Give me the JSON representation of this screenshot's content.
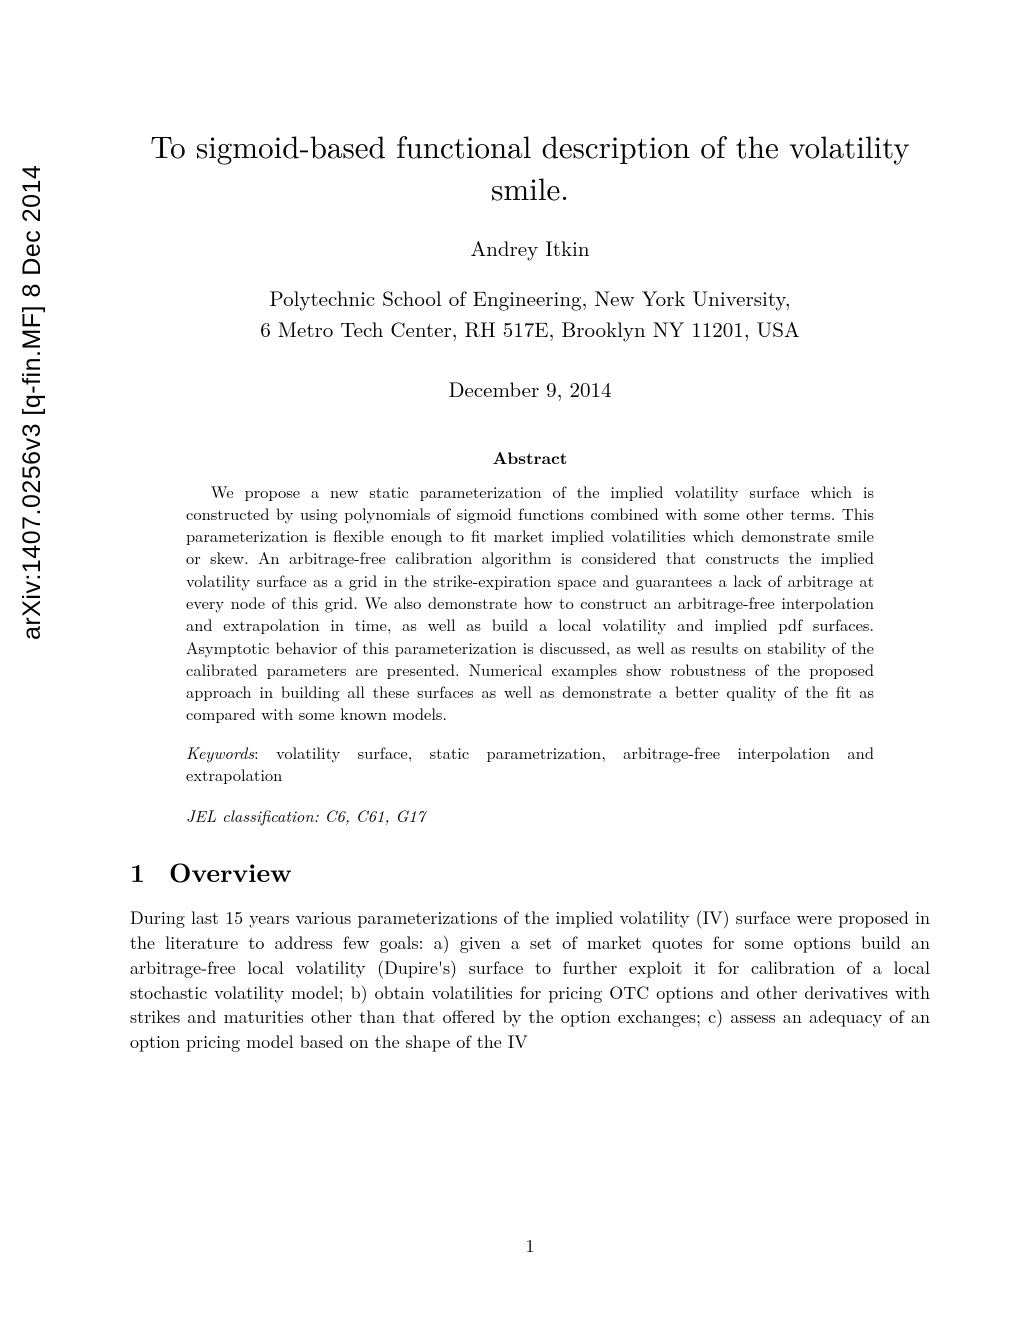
{
  "arxiv_stamp": "arXiv:1407.0256v3  [q-fin.MF]  8 Dec 2014",
  "title": "To sigmoid-based functional description of the volatility smile.",
  "author": "Andrey Itkin",
  "affiliation_line1": "Polytechnic School of Engineering, New York University,",
  "affiliation_line2": "6 Metro Tech Center, RH 517E, Brooklyn NY 11201, USA",
  "date": "December 9, 2014",
  "abstract_heading": "Abstract",
  "abstract_body": "We propose a new static parameterization of the implied volatility surface which is constructed by using polynomials of sigmoid functions combined with some other terms. This parameterization is flexible enough to fit market implied volatilities which demonstrate smile or skew. An arbitrage-free calibration algorithm is considered that constructs the implied volatility surface as a grid in the strike-expiration space and guarantees a lack of arbitrage at every node of this grid. We also demonstrate how to construct an arbitrage-free interpolation and extrapolation in time, as well as build a local volatility and implied pdf surfaces. Asymptotic behavior of this parameterization is discussed, as well as results on stability of the calibrated parameters are presented. Numerical examples show robustness of the proposed approach in building all these surfaces as well as demonstrate a better quality of the fit as compared with some known models.",
  "keywords_label": "Keywords",
  "keywords_text": ": volatility surface, static parametrization, arbitrage-free interpolation and extrapolation",
  "jel": "JEL classification: C6, C61, G17",
  "section_number": "1",
  "section_title": "Overview",
  "body_paragraph": "During last 15 years various parameterizations of the implied volatility (IV) surface were proposed in the literature to address few goals: a) given a set of market quotes for some options build an arbitrage-free local volatility (Dupire's) surface to further exploit it for calibration of a local stochastic volatility model; b) obtain volatilities for pricing OTC options and other derivatives with strikes and maturities other than that offered by the option exchanges; c) assess an adequacy of an option pricing model based on the shape of the IV",
  "page_number": "1"
}
